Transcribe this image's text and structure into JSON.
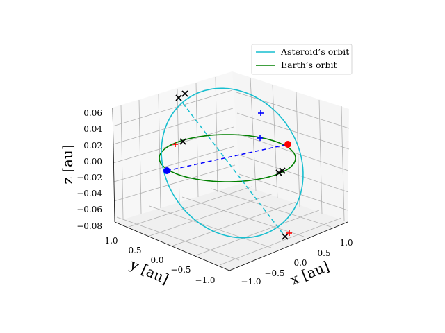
{
  "chart_data": {
    "type": "line3d",
    "title": "",
    "xlabel": "x [au]",
    "ylabel": "y [au]",
    "zlabel": "z [au]",
    "xlim": [
      -1.2,
      1.2
    ],
    "ylim": [
      -1.2,
      1.2
    ],
    "zlim": [
      -0.08,
      0.065
    ],
    "xticks": [
      "−1.0",
      "−0.5",
      "0.0",
      "0.5",
      "1.0"
    ],
    "yticks": [
      "1.0",
      "0.5",
      "0.0",
      "−0.5",
      "−1.0"
    ],
    "zticks": [
      "0.06",
      "0.04",
      "0.02",
      "0.00",
      "−0.02",
      "−0.04",
      "−0.06",
      "−0.08"
    ],
    "grid": true,
    "legend_position": "top-right",
    "series": [
      {
        "name": "Asteroid’s orbit",
        "color": "#17becf",
        "kind": "ellipse",
        "semi_major_axis": 1.18,
        "semi_minor_axis": 0.98,
        "inclination_deg": 3.0
      },
      {
        "name": "Earth’s orbit",
        "color": "#008000",
        "kind": "circle",
        "radius": 1.0,
        "z": 0.0
      }
    ],
    "markers": {
      "earth_position": {
        "color": "#0000ff",
        "symbol": "circle",
        "x": -0.7,
        "y": 0.7,
        "z": 0.0
      },
      "asteroid_position": {
        "color": "#ff0000",
        "symbol": "circle",
        "x": 0.95,
        "y": -0.3,
        "z": 0.017
      }
    },
    "connecting_lines": [
      {
        "color": "#0000ff",
        "style": "dashed"
      },
      {
        "color": "#17becf",
        "style": "dashed"
      }
    ]
  }
}
